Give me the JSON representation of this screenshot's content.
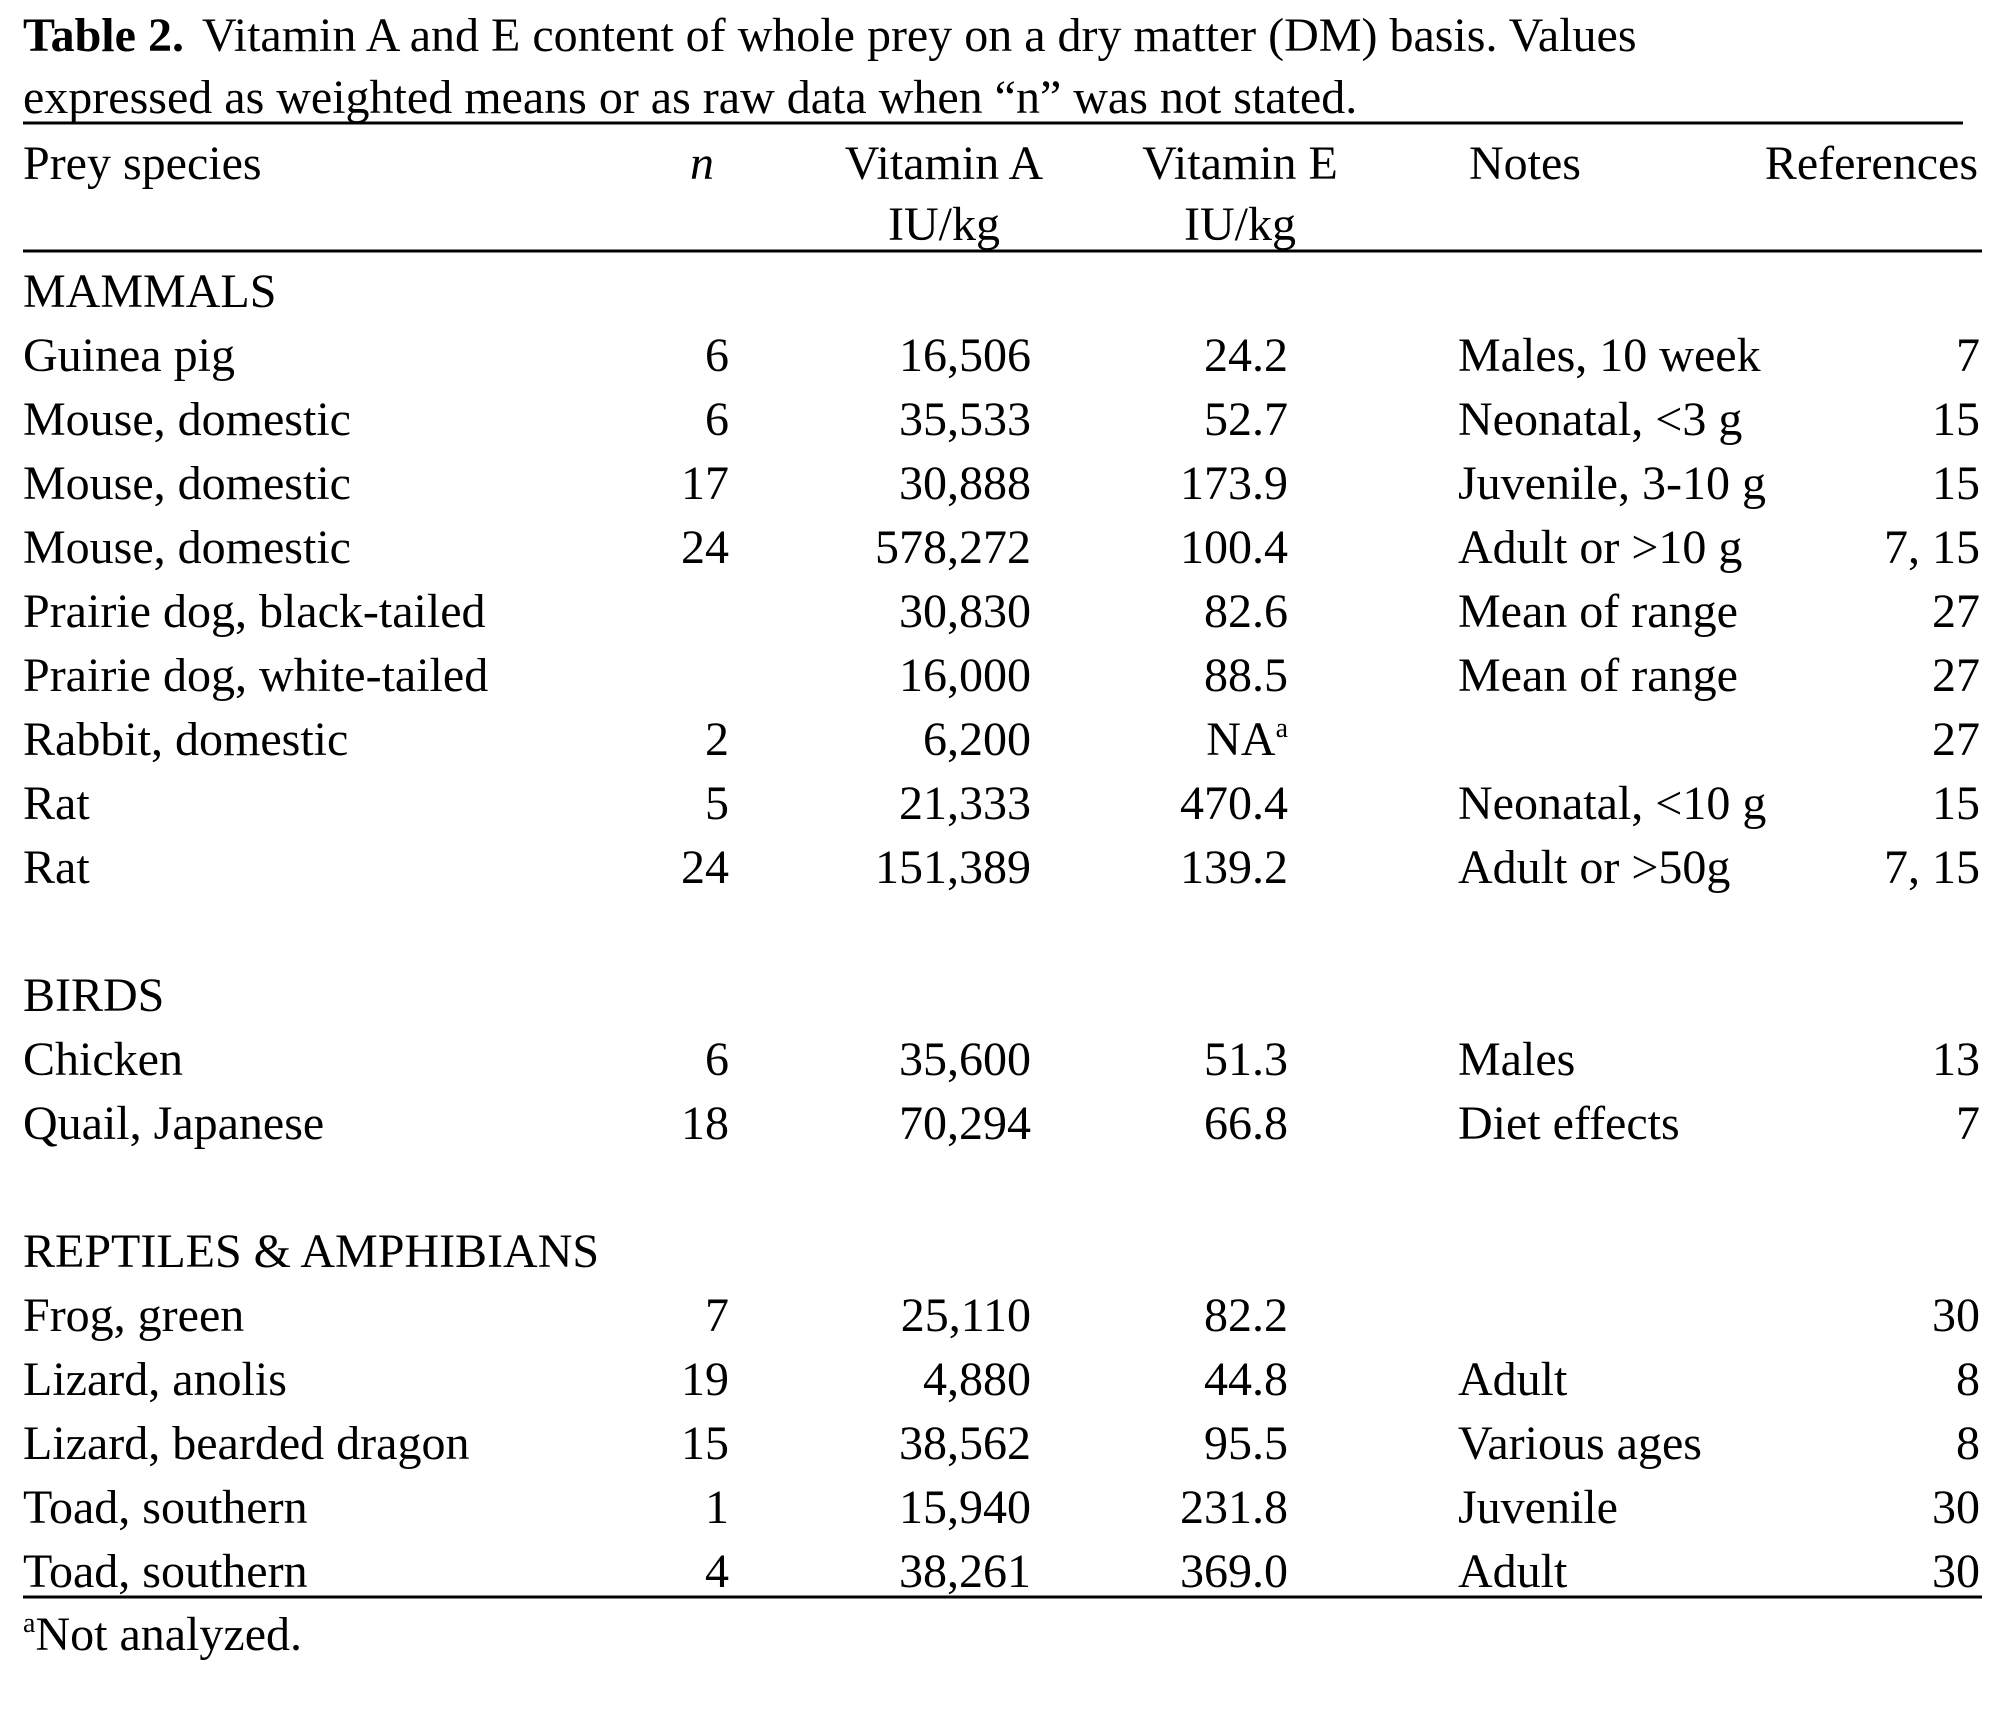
{
  "caption": {
    "label": "Table 2.",
    "lines": [
      "Vitamin A and E content of whole prey on a dry matter (DM) basis.  Values",
      "expressed as weighted means or as raw data when “n” was not stated."
    ]
  },
  "header": [
    {
      "lines": [
        "Prey species"
      ]
    },
    {
      "lines": [
        "n"
      ]
    },
    {
      "lines": [
        "Vitamin A",
        "IU/kg"
      ]
    },
    {
      "lines": [
        "Vitamin E",
        "IU/kg"
      ]
    },
    {
      "lines": [
        "Notes"
      ]
    },
    {
      "lines": [
        "References"
      ]
    }
  ],
  "sections": [
    {
      "name": "MAMMALS",
      "rows": [
        {
          "species": "Guinea pig",
          "n": "6",
          "vitamin_a": "16,506",
          "vitamin_e": "24.2",
          "notes": "Males, 10 week",
          "references": "7"
        },
        {
          "species": "Mouse, domestic",
          "n": "6",
          "vitamin_a": "35,533",
          "vitamin_e": "52.7",
          "notes": "Neonatal, <3 g",
          "references": "15"
        },
        {
          "species": "Mouse, domestic",
          "n": "17",
          "vitamin_a": "30,888",
          "vitamin_e": "173.9",
          "notes": "Juvenile, 3-10 g",
          "references": "15"
        },
        {
          "species": "Mouse, domestic",
          "n": "24",
          "vitamin_a": "578,272",
          "vitamin_e": "100.4",
          "notes": "Adult or >10 g",
          "references": "7, 15"
        },
        {
          "species": "Prairie dog, black-tailed",
          "n": null,
          "vitamin_a": "30,830",
          "vitamin_e": "82.6",
          "notes": "Mean of range",
          "references": "27"
        },
        {
          "species": "Prairie dog, white-tailed",
          "n": null,
          "vitamin_a": "16,000",
          "vitamin_e": "88.5",
          "notes": "Mean of range",
          "references": "27"
        },
        {
          "species": "Rabbit, domestic",
          "n": "2",
          "vitamin_a": "6,200",
          "vitamin_e": "NA",
          "vitamin_e_mark": "a",
          "notes": null,
          "references": "27"
        },
        {
          "species": "Rat",
          "n": "5",
          "vitamin_a": "21,333",
          "vitamin_e": "470.4",
          "notes": "Neonatal, <10 g",
          "references": "15"
        },
        {
          "species": "Rat",
          "n": "24",
          "vitamin_a": "151,389",
          "vitamin_e": "139.2",
          "notes": "Adult or >50g",
          "references": "7, 15"
        }
      ]
    },
    {
      "name": "BIRDS",
      "rows": [
        {
          "species": "Chicken",
          "n": "6",
          "vitamin_a": "35,600",
          "vitamin_e": "51.3",
          "notes": "Males",
          "references": "13"
        },
        {
          "species": "Quail, Japanese",
          "n": "18",
          "vitamin_a": "70,294",
          "vitamin_e": "66.8",
          "notes": "Diet effects",
          "references": "7"
        }
      ]
    },
    {
      "name": "REPTILES & AMPHIBIANS",
      "rows": [
        {
          "species": "Frog, green",
          "n": "7",
          "vitamin_a": "25,110",
          "vitamin_e": "82.2",
          "notes": null,
          "references": "30"
        },
        {
          "species": "Lizard, anolis",
          "n": "19",
          "vitamin_a": "4,880",
          "vitamin_e": "44.8",
          "notes": "Adult",
          "references": "8"
        },
        {
          "species": "Lizard, bearded dragon",
          "n": "15",
          "vitamin_a": "38,562",
          "vitamin_e": "95.5",
          "notes": "Various ages",
          "references": "8"
        },
        {
          "species": "Toad, southern",
          "n": "1",
          "vitamin_a": "15,940",
          "vitamin_e": "231.8",
          "notes": "Juvenile",
          "references": "30"
        },
        {
          "species": "Toad, southern",
          "n": "4",
          "vitamin_a": "38,261",
          "vitamin_e": "369.0",
          "notes": "Adult",
          "references": "30"
        }
      ]
    }
  ],
  "footnote": {
    "mark": "a",
    "text": "Not analyzed."
  }
}
